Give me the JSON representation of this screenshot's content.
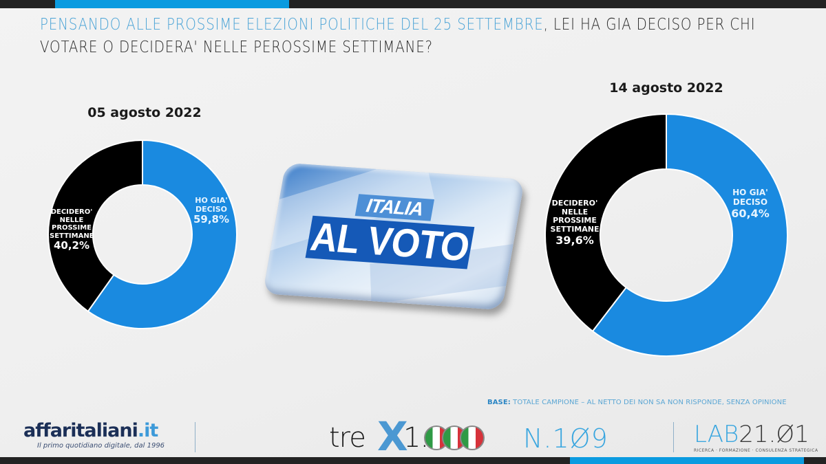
{
  "header": {
    "question_highlight": "Pensando alle prossime elezioni politiche del 25 settembre",
    "question_rest_line1": ", lei ha gia deciso per chi",
    "question_line2": "votare o decidera' nelle perossime settimane?"
  },
  "colors": {
    "decided": "#1a8ae0",
    "undecided": "#000000",
    "accent": "#0b9be0",
    "bar": "#232323"
  },
  "center_badge": {
    "line1": "ITALIA",
    "line2": "AL VOTO"
  },
  "footnote": {
    "label": "BASE:",
    "text": " TOTALE CAMPIONE – AL NETTO DEI NON SA NON RISPONDE, SENZA OPINIONE"
  },
  "footer": {
    "affari_name": "affaritaliani",
    "affari_tld": ".it",
    "affari_tagline": "Il primo quotidiano digitale, dal 1996",
    "trex_text": "tre",
    "trex_x": "X",
    "trex_num": "1.",
    "issue": "N.1Ø9",
    "lab_name": "LAB",
    "lab_num": "21.Ø1",
    "lab_tagline": "RICERCA · FORMAZIONE · CONSULENZA STRATEGICA"
  },
  "chart_data": [
    {
      "type": "pie",
      "variant": "donut",
      "title": "05 agosto 2022",
      "categories": [
        "HO GIA' DECISO",
        "DECIDERO' NELLE PROSSIME SETTIMANE"
      ],
      "values": [
        59.8,
        40.2
      ],
      "labels": [
        "59,8%",
        "40,2%"
      ],
      "colors": [
        "#1a8ae0",
        "#000000"
      ],
      "start_angle": "12 o'clock, clockwise"
    },
    {
      "type": "pie",
      "variant": "donut",
      "title": "14 agosto 2022",
      "categories": [
        "HO GIA' DECISO",
        "DECIDERO' NELLE PROSSIME SETTIMANE"
      ],
      "values": [
        60.4,
        39.6
      ],
      "labels": [
        "60,4%",
        "39,6%"
      ],
      "colors": [
        "#1a8ae0",
        "#000000"
      ],
      "start_angle": "12 o'clock, clockwise"
    }
  ],
  "labels": {
    "decided_l1": "HO GIA'",
    "decided_l2": "DECISO",
    "undecided_l1": "DECIDERO'",
    "undecided_l2": "NELLE",
    "undecided_l3": "PROSSIME",
    "undecided_l4": "SETTIMANE"
  }
}
